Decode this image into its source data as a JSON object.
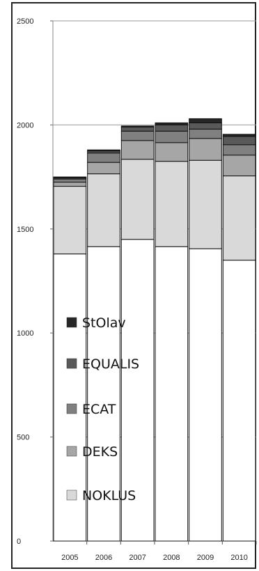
{
  "chart_data": {
    "type": "bar",
    "stacked": true,
    "title": "",
    "xlabel": "",
    "ylabel": "",
    "ylim": [
      0,
      2500
    ],
    "yticks": [
      "0",
      "500",
      "1000",
      "1500",
      "2000",
      "2500"
    ],
    "categories": [
      "2005",
      "2006",
      "2007",
      "2008",
      "2009",
      "2010"
    ],
    "series": [
      {
        "name": "NOKLUS",
        "color": "#ffffff",
        "values": [
          1380,
          1415,
          1450,
          1415,
          1405,
          1350
        ]
      },
      {
        "name": "DEKS",
        "color": "#d9d9d9",
        "values": [
          325,
          350,
          385,
          410,
          425,
          405
        ]
      },
      {
        "name": "ECAT",
        "color": "#a6a6a6",
        "values": [
          20,
          55,
          90,
          90,
          105,
          100
        ]
      },
      {
        "name": "EQUALIS",
        "color": "#808080",
        "values": [
          15,
          45,
          45,
          55,
          45,
          50
        ]
      },
      {
        "name": "StOlav",
        "color": "#595959",
        "values": [
          5,
          10,
          20,
          30,
          30,
          40
        ]
      },
      {
        "name": "",
        "color": "#262626",
        "values": [
          5,
          5,
          5,
          10,
          20,
          10
        ]
      }
    ],
    "legend_order": [
      "StOlav",
      "EQUALIS",
      "ECAT",
      "DEKS",
      "NOKLUS"
    ],
    "legend_position": "left-inside",
    "grid": true
  }
}
